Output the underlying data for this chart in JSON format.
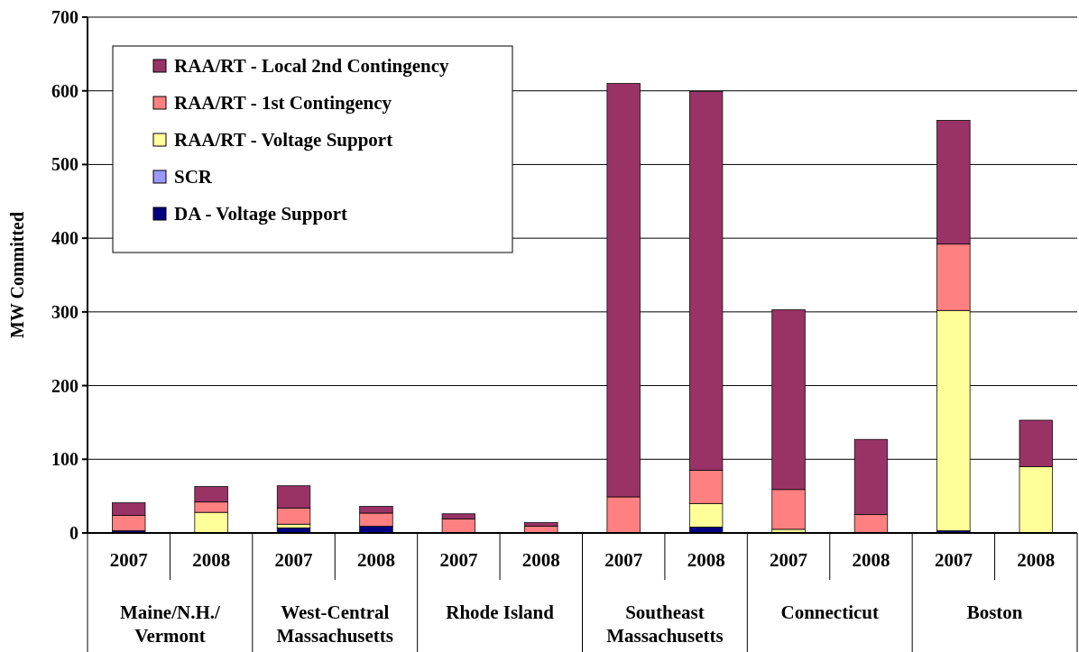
{
  "chart_data": {
    "type": "bar",
    "stacked": true,
    "ylabel": "MW Committed",
    "categories": [
      "2007",
      "2008",
      "2007",
      "2008",
      "2007",
      "2008",
      "2007",
      "2008",
      "2007",
      "2008",
      "2007",
      "2008"
    ],
    "annotations": [
      "Maine/N.H./\nVermont",
      "West-Central\nMassachusetts",
      "Rhode Island",
      "Southeast\nMassachusetts",
      "Connecticut",
      "Boston"
    ],
    "series": [
      {
        "name": "DA - Voltage Support",
        "color": "#000080",
        "values": [
          3,
          0,
          7,
          9,
          0,
          0,
          0,
          8,
          0,
          0,
          3,
          0
        ]
      },
      {
        "name": "SCR",
        "color": "#9999ff",
        "values": [
          0,
          0,
          0,
          0,
          0,
          0,
          0,
          0,
          0,
          0,
          0,
          0
        ]
      },
      {
        "name": "RAA/RT - Voltage Support",
        "color": "#ffff99",
        "values": [
          0,
          28,
          5,
          0,
          0,
          0,
          0,
          32,
          5,
          0,
          299,
          90
        ]
      },
      {
        "name": "RAA/RT - 1st Contingency",
        "color": "#ff8080",
        "values": [
          21,
          14,
          22,
          18,
          19,
          9,
          49,
          45,
          54,
          25,
          90,
          0
        ]
      },
      {
        "name": "RAA/RT - Local 2nd Contingency",
        "color": "#993366",
        "values": [
          17,
          21,
          30,
          9,
          7,
          5,
          561,
          514,
          244,
          102,
          168,
          63
        ]
      }
    ],
    "ylim": [
      0,
      700
    ],
    "yticks": [
      0,
      100,
      200,
      300,
      400,
      500,
      600,
      700
    ],
    "grid": "y",
    "legend": "top left"
  }
}
